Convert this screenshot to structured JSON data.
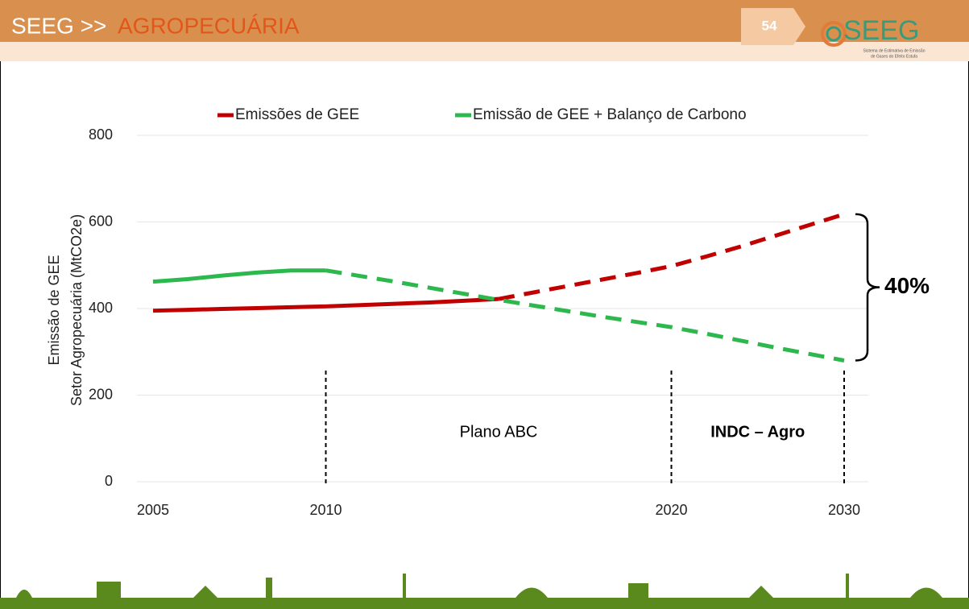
{
  "header": {
    "prefix": "SEEG >>",
    "title": "AGROPECUÁRIA",
    "page_number": "54",
    "logo_text": "SEEG",
    "logo_subtitle_1": "Sistema de Estimativa de Emissão",
    "logo_subtitle_2": "de Gases do Efeito Estufa"
  },
  "chart_data": {
    "type": "line",
    "y_label_lines": [
      "Emissão de GEE",
      "Setor Agropecuária (MtCO2e)"
    ],
    "categories": [
      "2005",
      null,
      null,
      null,
      null,
      "2010",
      null,
      null,
      null,
      null,
      null,
      null,
      null,
      null,
      null,
      "2020",
      null,
      null,
      null,
      null,
      "2030"
    ],
    "series": [
      {
        "name": "Emissões de GEE",
        "color": "#c00000",
        "dashed_from": 10,
        "values": [
          395,
          397,
          399,
          401,
          403,
          405,
          408,
          411,
          414,
          418,
          422,
          437,
          452,
          467,
          482,
          498,
          520,
          543,
          568,
          593,
          618
        ]
      },
      {
        "name": "Emissão de GEE + Balanço de Carbono",
        "color": "#2db84d",
        "dashed_from": 5,
        "values": [
          462,
          468,
          476,
          483,
          488,
          488,
          475,
          462,
          448,
          434,
          420,
          407,
          394,
          381,
          369,
          357,
          342,
          326,
          310,
          295,
          280
        ]
      }
    ],
    "ylim": [
      0,
      800
    ],
    "yticks": [
      0,
      200,
      400,
      600,
      800
    ],
    "grid": true,
    "vlines": [
      "2010",
      "2020",
      "2030"
    ],
    "annotations": [
      "Plano ABC",
      "INDC – Agro"
    ],
    "brace_label": "40%"
  }
}
